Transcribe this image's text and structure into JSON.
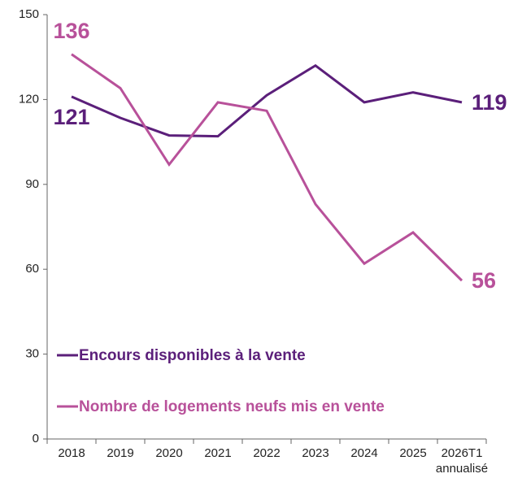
{
  "chart_data": {
    "type": "line",
    "categories": [
      "2018",
      "2019",
      "2020",
      "2021",
      "2022",
      "2023",
      "2024",
      "2025",
      "2026T1 annualisé"
    ],
    "series": [
      {
        "name": "Encours disponibles à la vente",
        "color": "#5b1f7a",
        "values": [
          121,
          113.5,
          107.3,
          107,
          121.5,
          132,
          119,
          122.5,
          119
        ]
      },
      {
        "name": "Nombre de logements neufs mis en vente",
        "color": "#b8519a",
        "values": [
          136,
          124,
          97,
          119,
          116,
          83,
          62,
          73,
          56
        ]
      }
    ],
    "ylim": [
      0,
      150
    ],
    "yticks": [
      0,
      30,
      60,
      90,
      120,
      150
    ],
    "grid": false,
    "legend": "bottom-left"
  }
}
